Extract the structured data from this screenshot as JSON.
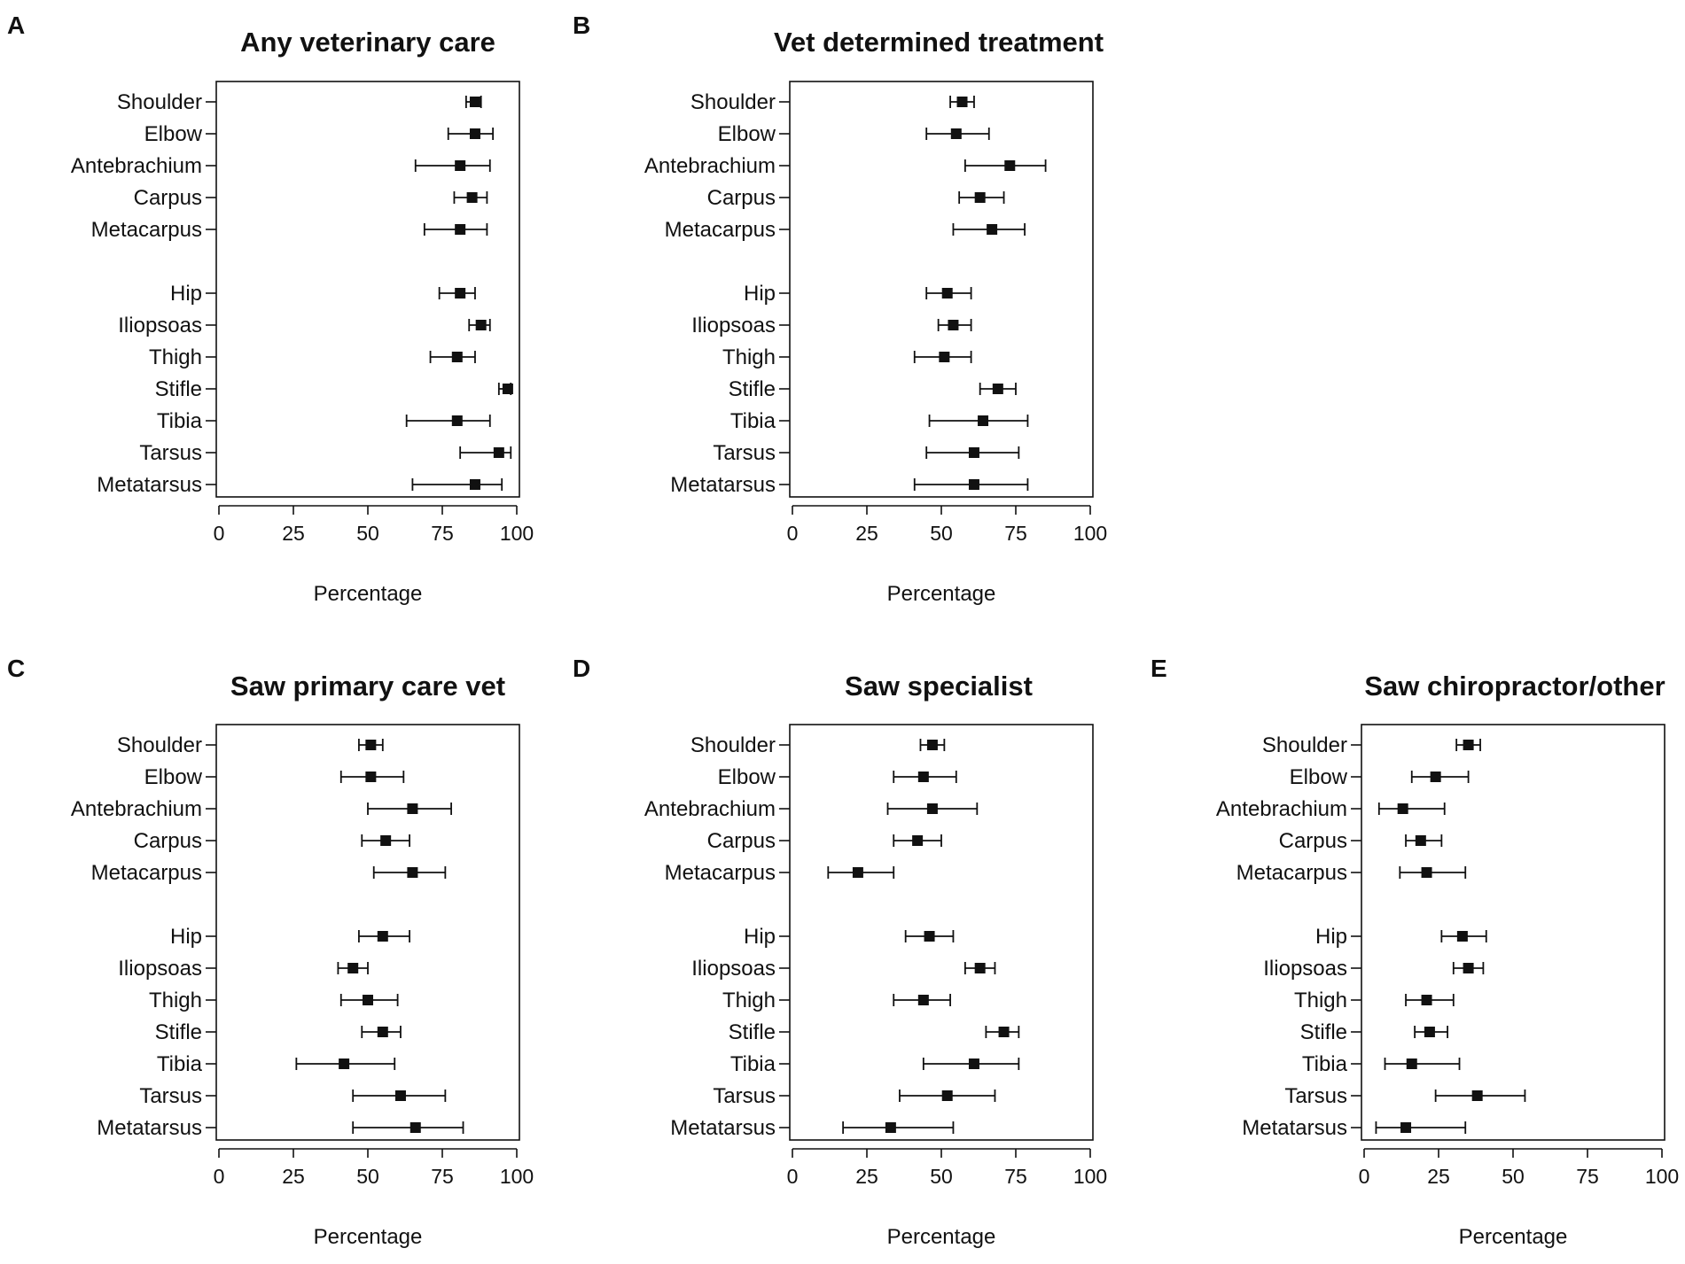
{
  "figure": {
    "categories": [
      "Shoulder",
      "Elbow",
      "Antebrachium",
      "Carpus",
      "Metacarpus",
      "Hip",
      "Iliopsoas",
      "Thigh",
      "Stifle",
      "Tibia",
      "Tarsus",
      "Metatarsus"
    ]
  },
  "chart_data": [
    {
      "type": "scatter",
      "panel": "A",
      "title": "Any veterinary care",
      "xlabel": "Percentage",
      "ylabel": "",
      "xlim": [
        0,
        100
      ],
      "xticks": [
        0,
        25,
        50,
        75,
        100
      ],
      "xtick_labels": [
        "0",
        "25",
        "50",
        "75",
        "100"
      ],
      "categories": [
        "Shoulder",
        "Elbow",
        "Antebrachium",
        "Carpus",
        "Metacarpus",
        "Hip",
        "Iliopsoas",
        "Thigh",
        "Stifle",
        "Tibia",
        "Tarsus",
        "Metatarsus"
      ],
      "estimate": [
        86,
        86,
        81,
        85,
        81,
        81,
        88,
        80,
        97,
        80,
        94,
        86
      ],
      "lower": [
        83,
        77,
        66,
        79,
        69,
        74,
        84,
        71,
        94,
        63,
        81,
        65
      ],
      "upper": [
        88,
        92,
        91,
        90,
        90,
        86,
        91,
        86,
        98,
        91,
        98,
        95
      ]
    },
    {
      "type": "scatter",
      "panel": "B",
      "title": "Vet determined treatment",
      "xlabel": "Percentage",
      "ylabel": "",
      "xlim": [
        0,
        100
      ],
      "xticks": [
        0,
        25,
        50,
        75,
        100
      ],
      "xtick_labels": [
        "0",
        "25",
        "50",
        "75",
        "100"
      ],
      "categories": [
        "Shoulder",
        "Elbow",
        "Antebrachium",
        "Carpus",
        "Metacarpus",
        "Hip",
        "Iliopsoas",
        "Thigh",
        "Stifle",
        "Tibia",
        "Tarsus",
        "Metatarsus"
      ],
      "estimate": [
        57,
        55,
        73,
        63,
        67,
        52,
        54,
        51,
        69,
        64,
        61,
        61
      ],
      "lower": [
        53,
        45,
        58,
        56,
        54,
        45,
        49,
        41,
        63,
        46,
        45,
        41
      ],
      "upper": [
        61,
        66,
        85,
        71,
        78,
        60,
        60,
        60,
        75,
        79,
        76,
        79
      ]
    },
    {
      "type": "scatter",
      "panel": "C",
      "title": "Saw primary care vet",
      "xlabel": "Percentage",
      "ylabel": "",
      "xlim": [
        0,
        100
      ],
      "xticks": [
        0,
        25,
        50,
        75,
        100
      ],
      "xtick_labels": [
        "0",
        "25",
        "50",
        "75",
        "100"
      ],
      "categories": [
        "Shoulder",
        "Elbow",
        "Antebrachium",
        "Carpus",
        "Metacarpus",
        "Hip",
        "Iliopsoas",
        "Thigh",
        "Stifle",
        "Tibia",
        "Tarsus",
        "Metatarsus"
      ],
      "estimate": [
        51,
        51,
        65,
        56,
        65,
        55,
        45,
        50,
        55,
        42,
        61,
        66
      ],
      "lower": [
        47,
        41,
        50,
        48,
        52,
        47,
        40,
        41,
        48,
        26,
        45,
        45
      ],
      "upper": [
        55,
        62,
        78,
        64,
        76,
        64,
        50,
        60,
        61,
        59,
        76,
        82
      ]
    },
    {
      "type": "scatter",
      "panel": "D",
      "title": "Saw specialist",
      "xlabel": "Percentage",
      "ylabel": "",
      "xlim": [
        0,
        100
      ],
      "xticks": [
        0,
        25,
        50,
        75,
        100
      ],
      "xtick_labels": [
        "0",
        "25",
        "50",
        "75",
        "100"
      ],
      "categories": [
        "Shoulder",
        "Elbow",
        "Antebrachium",
        "Carpus",
        "Metacarpus",
        "Hip",
        "Iliopsoas",
        "Thigh",
        "Stifle",
        "Tibia",
        "Tarsus",
        "Metatarsus"
      ],
      "estimate": [
        47,
        44,
        47,
        42,
        22,
        46,
        63,
        44,
        71,
        61,
        52,
        33
      ],
      "lower": [
        43,
        34,
        32,
        34,
        12,
        38,
        58,
        34,
        65,
        44,
        36,
        17
      ],
      "upper": [
        51,
        55,
        62,
        50,
        34,
        54,
        68,
        53,
        76,
        76,
        68,
        54
      ]
    },
    {
      "type": "scatter",
      "panel": "E",
      "title": "Saw chiropractor/other",
      "xlabel": "Percentage",
      "ylabel": "",
      "xlim": [
        0,
        100
      ],
      "xticks": [
        0,
        25,
        50,
        75,
        100
      ],
      "xtick_labels": [
        "0",
        "25",
        "50",
        "75",
        "100"
      ],
      "categories": [
        "Shoulder",
        "Elbow",
        "Antebrachium",
        "Carpus",
        "Metacarpus",
        "Hip",
        "Iliopsoas",
        "Thigh",
        "Stifle",
        "Tibia",
        "Tarsus",
        "Metatarsus"
      ],
      "estimate": [
        35,
        24,
        13,
        19,
        21,
        33,
        35,
        21,
        22,
        16,
        38,
        14
      ],
      "lower": [
        31,
        16,
        5,
        14,
        12,
        26,
        30,
        14,
        17,
        7,
        24,
        4
      ],
      "upper": [
        39,
        35,
        27,
        26,
        34,
        41,
        40,
        30,
        28,
        32,
        54,
        34
      ]
    }
  ]
}
